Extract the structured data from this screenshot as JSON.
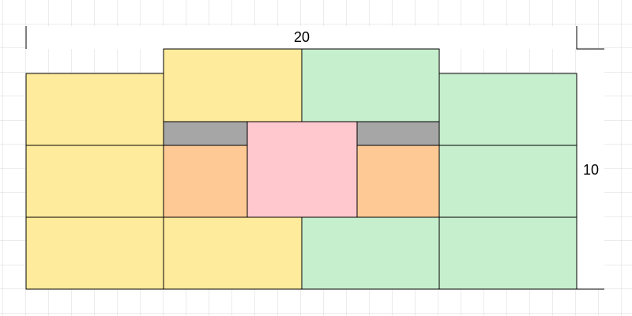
{
  "dimensions": {
    "width_label": "20",
    "height_label": "10"
  }
}
